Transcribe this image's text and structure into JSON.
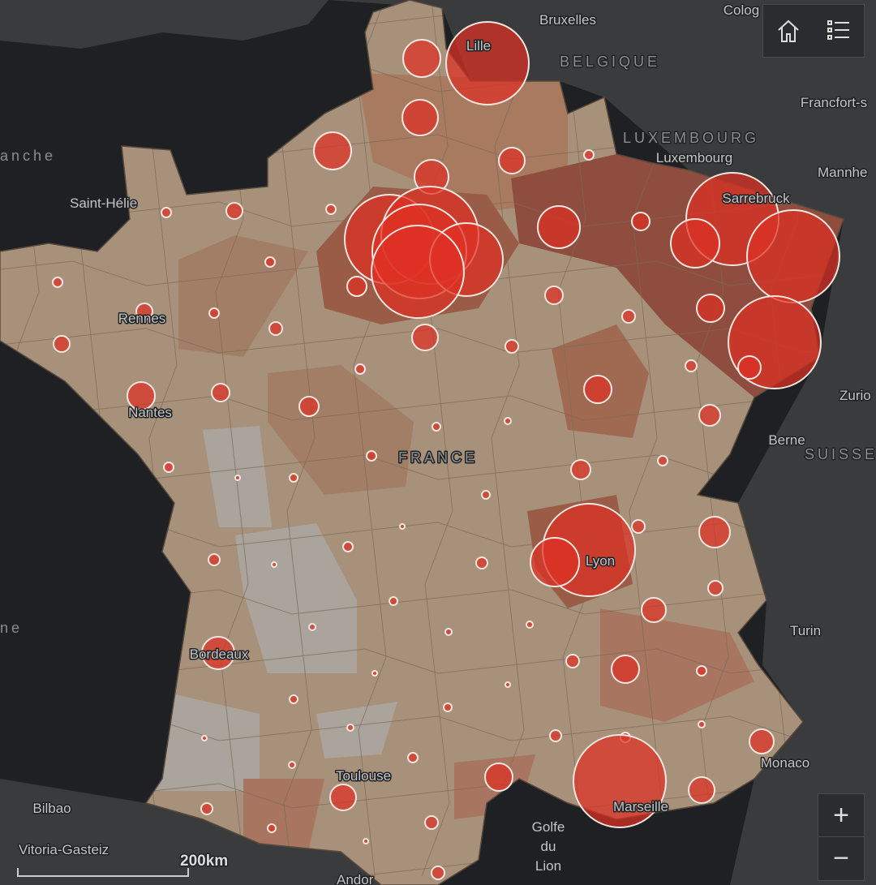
{
  "labels": [
    "Bruxelles",
    "Colog",
    "BELGIQUE",
    "Francfort-s",
    "LUXEMBOURG",
    "Luxembourg",
    "Mannhe",
    "anche",
    "Saint-Hélie",
    "Sarrebruck",
    "Rennes",
    "Nantes",
    "FRANCE",
    "Berne",
    "SUISSE",
    "Zurio",
    "Turin",
    "ne",
    "Lyon",
    "Bordeaux",
    "Toulouse",
    "Monaco",
    "Marseille",
    "Bilbao",
    "Vitoria-Gasteiz",
    "Golfe",
    "du",
    "Lion",
    "Andor",
    "Lille"
  ],
  "scale_bar": "200km",
  "controls": {
    "zoom_in": "+",
    "zoom_out": "−"
  }
}
